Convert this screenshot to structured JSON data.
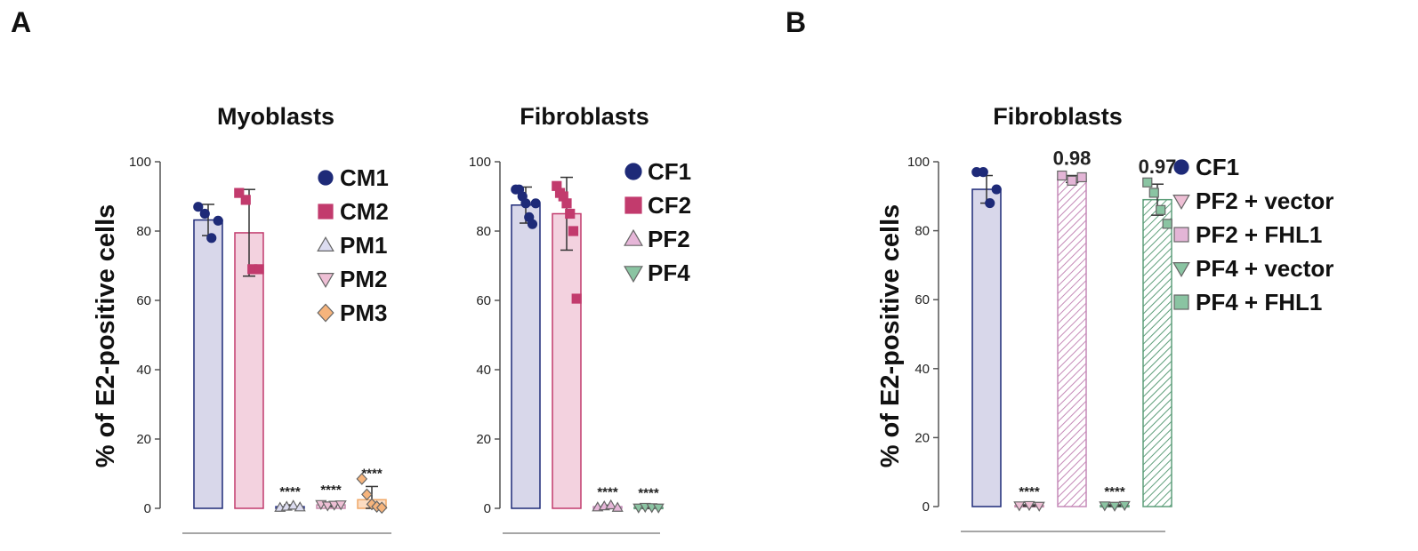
{
  "panels": {
    "a": "A",
    "b": "B"
  },
  "chart_data": [
    {
      "id": "myoblasts",
      "type": "bar",
      "title": "Myoblasts",
      "ylabel": "% of E2-positive cells",
      "ylim": [
        0,
        100
      ],
      "yticks": [
        0,
        20,
        40,
        60,
        80,
        100
      ],
      "categories": [
        "CM1",
        "CM2",
        "PM1",
        "PM2",
        "PM3"
      ],
      "series": [
        {
          "name": "CM1",
          "mean": 83.2,
          "sd": 4.5,
          "points": [
            87,
            85,
            78,
            83
          ],
          "marker": "circle",
          "fill": "#d8d7ea",
          "stroke": "#1e2a78",
          "markerColor": "#1e2a78",
          "annotation": ""
        },
        {
          "name": "CM2",
          "mean": 79.5,
          "sd": 12.5,
          "points": [
            91,
            89,
            69,
            69
          ],
          "marker": "square",
          "fill": "#f3d2df",
          "stroke": "#c23b6d",
          "markerColor": "#c23b6d",
          "annotation": ""
        },
        {
          "name": "PM1",
          "mean": 0.5,
          "sd": 0.5,
          "points": [
            0.2,
            0.5,
            0.8,
            0.3
          ],
          "marker": "triangle-up",
          "fill": "#e7e7f4",
          "stroke": "#2e3a8c",
          "markerColor": "#dcdcf0",
          "annotation": "****"
        },
        {
          "name": "PM2",
          "mean": 1.0,
          "sd": 0.5,
          "points": [
            1.2,
            0.8,
            1.0,
            1.1
          ],
          "marker": "triangle-down",
          "fill": "#f6dbe9",
          "stroke": "#c58aab",
          "markerColor": "#eebfd5",
          "annotation": "****"
        },
        {
          "name": "PM3",
          "mean": 2.5,
          "sd": 3.8,
          "points": [
            8.5,
            4.0,
            1.2,
            0.5,
            0.2
          ],
          "marker": "diamond",
          "fill": "#fbdcc2",
          "stroke": "#f0a868",
          "markerColor": "#f6b47c",
          "annotation": "****"
        }
      ]
    },
    {
      "id": "fibroblasts-a",
      "type": "bar",
      "title": "Fibroblasts",
      "ylabel": "",
      "ylim": [
        0,
        100
      ],
      "yticks": [
        0,
        20,
        40,
        60,
        80,
        100
      ],
      "categories": [
        "CF1",
        "CF2",
        "PF2",
        "PF4"
      ],
      "series": [
        {
          "name": "CF1",
          "mean": 87.5,
          "sd": 5.2,
          "points": [
            92,
            92,
            90,
            88,
            84,
            82,
            88
          ],
          "marker": "circle",
          "fill": "#d8d7ea",
          "stroke": "#1e2a78",
          "markerColor": "#1e2a78",
          "annotation": ""
        },
        {
          "name": "CF2",
          "mean": 85.0,
          "sd": 10.5,
          "points": [
            93,
            91,
            90,
            88,
            85,
            80,
            60.5
          ],
          "marker": "square",
          "fill": "#f3d2df",
          "stroke": "#c23b6d",
          "markerColor": "#c23b6d",
          "annotation": ""
        },
        {
          "name": "PF2",
          "mean": 0.5,
          "sd": 0.4,
          "points": [
            0.3,
            0.6,
            0.9,
            0.2
          ],
          "marker": "triangle-up",
          "fill": "#efd8ea",
          "stroke": "#c58ab8",
          "markerColor": "#e6b6d8",
          "annotation": "****"
        },
        {
          "name": "PF4",
          "mean": 0.3,
          "sd": 0.3,
          "points": [
            0.2,
            0.4,
            0.3,
            0.2
          ],
          "marker": "triangle-down",
          "fill": "#d7ece0",
          "stroke": "#5d9e7a",
          "markerColor": "#8ac4a2",
          "annotation": "****"
        }
      ]
    },
    {
      "id": "fibroblasts-b",
      "type": "bar",
      "title": "Fibroblasts",
      "ylabel": "% of E2-positive cells",
      "ylim": [
        0,
        100
      ],
      "yticks": [
        0,
        20,
        40,
        60,
        80,
        100
      ],
      "categories": [
        "CF1",
        "PF2 + vector",
        "PF2 + FHL1",
        "PF4 + vector",
        "PF4 + FHL1"
      ],
      "series": [
        {
          "name": "CF1",
          "mean": 92.0,
          "sd": 4.0,
          "points": [
            97,
            97,
            88,
            92
          ],
          "marker": "circle",
          "fill": "#d8d7ea",
          "stroke": "#1e2a78",
          "markerColor": "#1e2a78",
          "hatch": false,
          "annotation": ""
        },
        {
          "name": "PF2 + vector",
          "mean": 0.3,
          "sd": 0.2,
          "points": [
            0.3,
            0.4,
            0.2
          ],
          "marker": "triangle-down",
          "fill": "#f3d2df",
          "stroke": "#c58aab",
          "markerColor": "#eebfd5",
          "hatch": false,
          "annotation": "****"
        },
        {
          "name": "PF2 + FHL1",
          "mean": 95.0,
          "sd": 1.0,
          "points": [
            96,
            94.5,
            95.5
          ],
          "marker": "square",
          "fill": "#ffffff",
          "stroke": "#c58ab8",
          "markerColor": "#e3b5d6",
          "hatch": true,
          "annotation": "0.98"
        },
        {
          "name": "PF4 + vector",
          "mean": 0.3,
          "sd": 0.2,
          "points": [
            0.3,
            0.2,
            0.4
          ],
          "marker": "triangle-down",
          "fill": "#d7ece0",
          "stroke": "#5d9e7a",
          "markerColor": "#8ac4a2",
          "hatch": false,
          "annotation": "****"
        },
        {
          "name": "PF4 + FHL1",
          "mean": 89.0,
          "sd": 4.5,
          "points": [
            94,
            91,
            86,
            82
          ],
          "marker": "square",
          "fill": "#ffffff",
          "stroke": "#5d9e7a",
          "markerColor": "#8ac4a2",
          "hatch": true,
          "annotation": "0.97"
        }
      ]
    }
  ]
}
